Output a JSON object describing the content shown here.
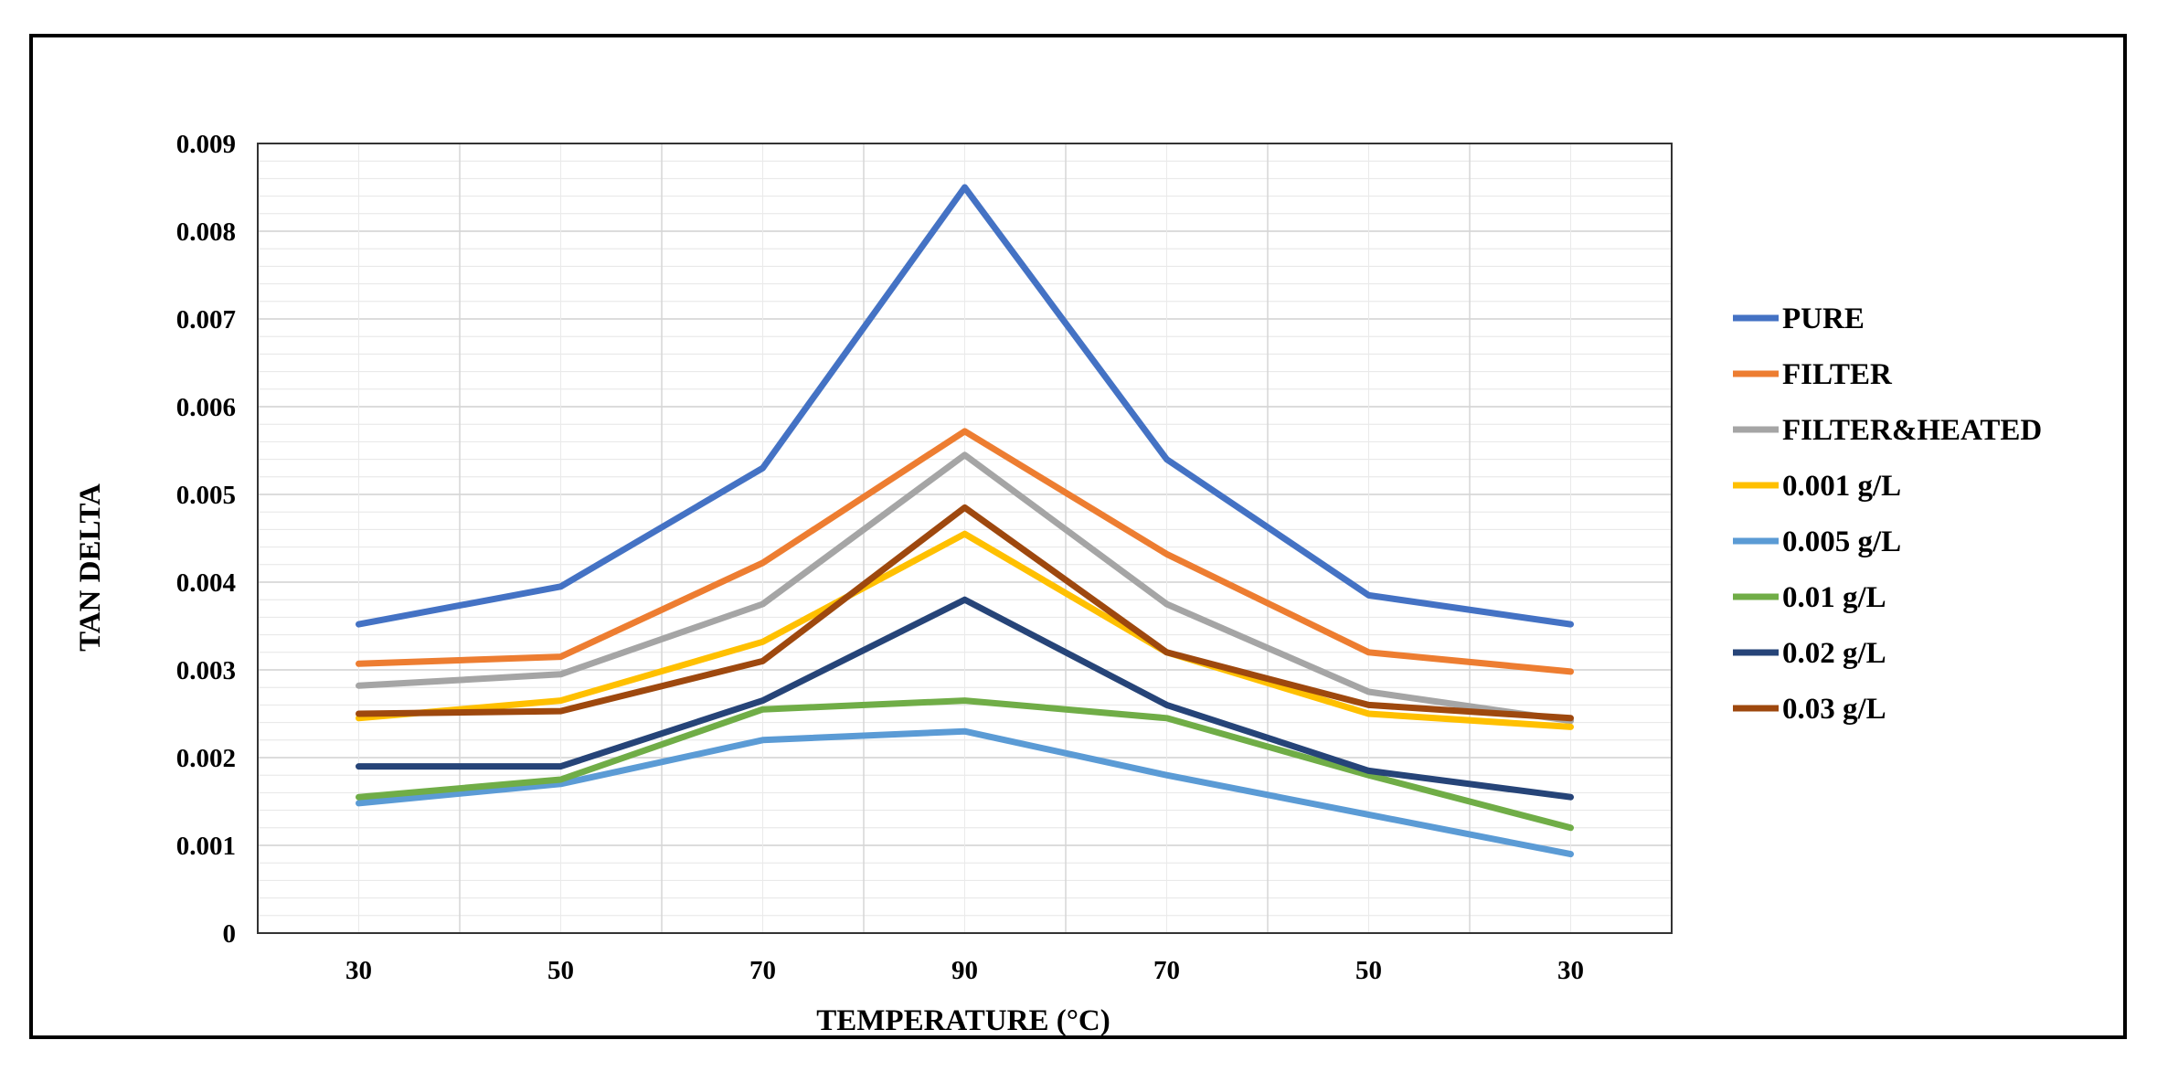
{
  "chart_data": {
    "type": "line",
    "title": "",
    "xlabel": "TEMPERATURE (°C)",
    "ylabel": "TAN DELTA",
    "categories": [
      "30",
      "50",
      "70",
      "90",
      "70",
      "50",
      "30"
    ],
    "ylim": [
      0,
      0.009
    ],
    "yticks": [
      "0",
      "0.001",
      "0.002",
      "0.003",
      "0.004",
      "0.005",
      "0.006",
      "0.007",
      "0.008",
      "0.009"
    ],
    "grid": true,
    "legend_position": "right",
    "series": [
      {
        "name": "PURE",
        "color": "#4472C4",
        "values": [
          0.00352,
          0.00395,
          0.0053,
          0.0085,
          0.0054,
          0.00385,
          0.00352
        ]
      },
      {
        "name": "FILTER",
        "color": "#ED7D31",
        "values": [
          0.00307,
          0.00315,
          0.00422,
          0.00572,
          0.00432,
          0.0032,
          0.00298
        ]
      },
      {
        "name": "FILTER&HEATED",
        "color": "#A5A5A5",
        "values": [
          0.00282,
          0.00295,
          0.00375,
          0.00545,
          0.00375,
          0.00275,
          0.00242
        ]
      },
      {
        "name": "0.001 g/L",
        "color": "#FFC000",
        "values": [
          0.00245,
          0.00265,
          0.00332,
          0.00455,
          0.0032,
          0.0025,
          0.00235
        ]
      },
      {
        "name": "0.005 g/L",
        "color": "#5B9BD5",
        "values": [
          0.00148,
          0.0017,
          0.0022,
          0.0023,
          0.0018,
          0.00135,
          0.0009
        ]
      },
      {
        "name": "0.01 g/L",
        "color": "#70AD47",
        "values": [
          0.00155,
          0.00175,
          0.00255,
          0.00265,
          0.00245,
          0.0018,
          0.0012
        ]
      },
      {
        "name": "0.02 g/L",
        "color": "#264478",
        "values": [
          0.0019,
          0.0019,
          0.00265,
          0.0038,
          0.0026,
          0.00185,
          0.00155
        ]
      },
      {
        "name": "0.03 g/L",
        "color": "#9E480E",
        "values": [
          0.0025,
          0.00253,
          0.0031,
          0.00485,
          0.0032,
          0.0026,
          0.00245
        ]
      }
    ]
  }
}
